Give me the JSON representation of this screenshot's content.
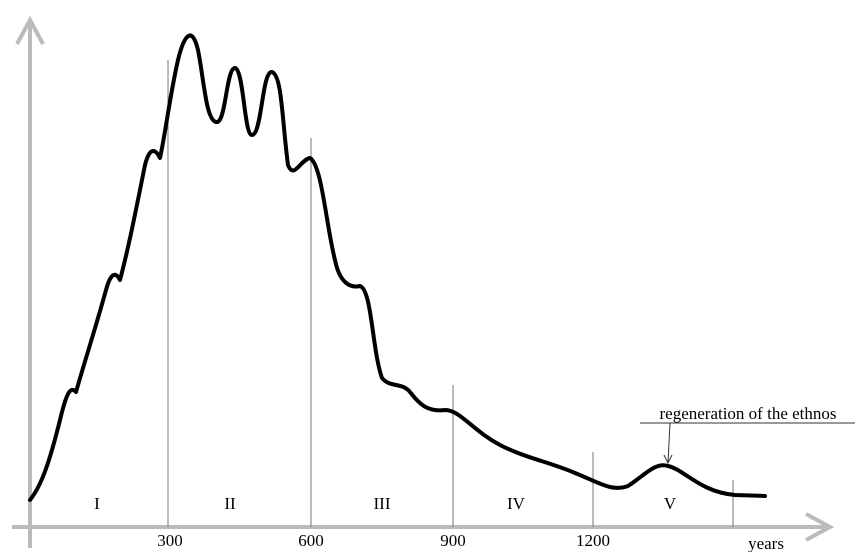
{
  "axis": {
    "label": "years",
    "ticks": [
      "300",
      "600",
      "900",
      "1200"
    ]
  },
  "phases": [
    "I",
    "II",
    "III",
    "IV",
    "V"
  ],
  "annotation": "regeneration of the ethnos"
}
